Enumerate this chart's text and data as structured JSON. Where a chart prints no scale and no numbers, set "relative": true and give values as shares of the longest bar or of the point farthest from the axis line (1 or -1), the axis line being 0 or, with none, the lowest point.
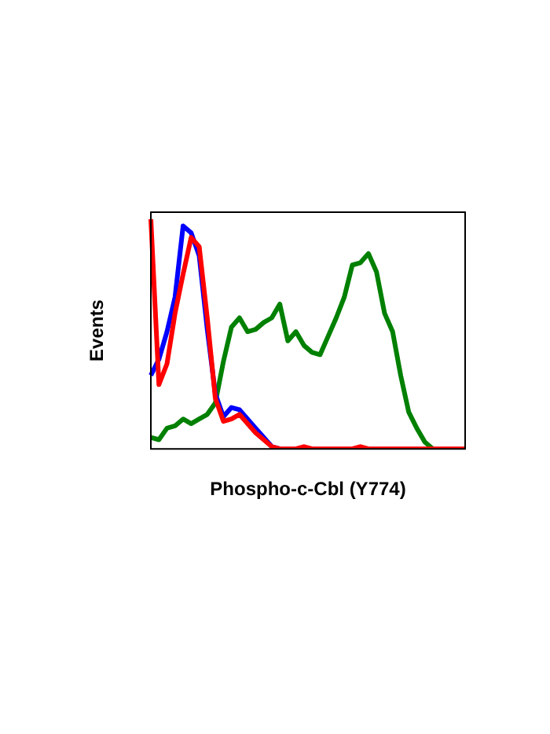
{
  "chart_data": {
    "type": "line",
    "xlabel": "Phospho-c-Cbl (Y774)",
    "ylabel": "Events",
    "relative": true,
    "legend": false,
    "marker": "none",
    "categories": [
      null,
      null,
      null,
      null,
      null,
      null,
      null,
      null,
      null,
      null,
      null,
      null,
      null,
      null,
      null,
      null,
      null,
      null,
      null,
      null,
      null,
      null,
      null,
      null,
      null,
      null,
      null,
      null,
      null,
      null,
      null,
      null,
      null,
      null,
      null,
      null,
      null,
      null,
      null,
      null
    ],
    "series": [
      {
        "color": "#ff0000",
        "values": [
          1.0,
          0.28,
          0.37,
          0.59,
          0.76,
          0.92,
          0.88,
          0.57,
          0.22,
          0.12,
          0.13,
          0.15,
          0.11,
          0.07,
          0.04,
          0.01,
          0,
          0,
          0,
          0.01,
          0,
          0,
          0,
          0,
          0,
          0,
          0.01,
          0,
          0,
          0,
          0,
          0,
          0,
          0,
          0,
          0,
          0,
          0,
          0,
          0
        ]
      },
      {
        "color": "#0000ff",
        "values": [
          0.32,
          0.39,
          0.51,
          0.66,
          0.97,
          0.94,
          0.84,
          0.52,
          0.24,
          0.14,
          0.18,
          0.17,
          0.13,
          0.09,
          0.05,
          0.01,
          0,
          null,
          null,
          null,
          null,
          null,
          null,
          null,
          null,
          null,
          null,
          null,
          null,
          null,
          null,
          null,
          null,
          null,
          null,
          null,
          null,
          null,
          null,
          null
        ]
      },
      {
        "color": "#008000",
        "values": [
          0.05,
          0.04,
          0.09,
          0.1,
          0.13,
          0.11,
          0.13,
          0.15,
          0.2,
          0.38,
          0.53,
          0.57,
          0.51,
          0.52,
          0.55,
          0.57,
          0.63,
          0.47,
          0.51,
          0.45,
          0.42,
          0.41,
          0.49,
          0.57,
          0.66,
          0.8,
          0.81,
          0.85,
          0.77,
          0.59,
          0.51,
          0.32,
          0.16,
          0.09,
          0.03,
          0,
          null,
          null,
          null,
          null
        ]
      }
    ]
  }
}
